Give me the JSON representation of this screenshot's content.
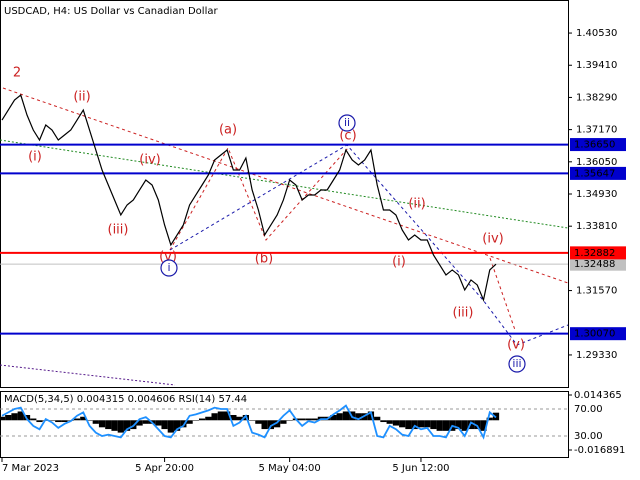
{
  "chart_data": [
    {
      "type": "line",
      "title": "USDCAD, H4:  US Dollar vs Canadian Dollar",
      "categories": [
        "7 Mar 2023",
        null,
        null,
        null,
        null,
        null,
        null,
        null,
        null,
        null,
        null,
        null,
        null,
        null,
        null,
        null,
        null,
        null,
        null,
        null,
        null,
        null,
        null,
        null,
        null,
        null,
        "5 Apr 20:00",
        null,
        null,
        null,
        null,
        null,
        null,
        null,
        null,
        null,
        null,
        null,
        null,
        null,
        null,
        null,
        null,
        null,
        null,
        null,
        "5 May 04:00",
        null,
        null,
        null,
        null,
        null,
        null,
        null,
        null,
        null,
        null,
        null,
        null,
        null,
        null,
        null,
        null,
        null,
        null,
        null,
        null,
        "5 Jun 12:00",
        null,
        null,
        null,
        null,
        null,
        null,
        null,
        null,
        null,
        null,
        null,
        null
      ],
      "series": [
        {
          "color": "#000000",
          "values": [
            1.37504,
            1.37852,
            1.382,
            1.38374,
            1.37678,
            1.37156,
            1.36808,
            1.3733,
            1.37156,
            1.36808,
            1.36982,
            1.37156,
            1.37504,
            1.37852,
            1.37156,
            1.36461,
            1.35765,
            1.35243,
            1.34722,
            1.342,
            1.34548,
            1.34722,
            1.3507,
            1.35417,
            1.35243,
            1.34722,
            1.33852,
            1.33156,
            1.33504,
            1.33852,
            1.34548,
            1.34896,
            1.35243,
            1.35591,
            1.36113,
            1.36287,
            1.36461,
            1.35765,
            1.35765,
            1.36182,
            1.3507,
            1.34374,
            1.33504,
            1.33852,
            1.342,
            1.34722,
            1.35417,
            1.35243,
            1.34722,
            1.34896,
            1.34896,
            1.3507,
            1.3507,
            1.35417,
            1.35765,
            1.36461,
            1.36113,
            1.35939,
            1.36113,
            1.36461,
            1.35243,
            1.34374,
            1.34374,
            1.342,
            1.33678,
            1.3333,
            1.33504,
            1.3333,
            1.3333,
            1.32808,
            1.32461,
            1.32113,
            1.32287,
            1.32113,
            1.31591,
            1.31939,
            1.31765,
            1.31243,
            1.32287,
            1.32488
          ]
        }
      ],
      "ylim": [
        1.2818,
        1.4168
      ],
      "yticks": [
        {
          "value": 1.4053,
          "label": "1.40530"
        },
        {
          "value": 1.3941,
          "label": "1.39410"
        },
        {
          "value": 1.3829,
          "label": "1.38290"
        },
        {
          "value": 1.3717,
          "label": "1.37170"
        },
        {
          "value": 1.3605,
          "label": "1.36050"
        },
        {
          "value": 1.3493,
          "label": "1.34930"
        },
        {
          "value": 1.3381,
          "label": "1.33810"
        },
        {
          "value": 1.3157,
          "label": "1.31570"
        },
        {
          "value": 1.2933,
          "label": "1.29330"
        }
      ],
      "levels": [
        {
          "value": 1.3665,
          "label": "1.36650",
          "color": "#0000cd"
        },
        {
          "value": 1.35647,
          "label": "1.35647",
          "color": "#0000cd"
        },
        {
          "value": 1.32882,
          "label": "1.32882",
          "color": "#ff0000"
        },
        {
          "value": 1.3007,
          "label": "1.30070",
          "color": "#0000cd"
        }
      ],
      "last_price": {
        "value": 1.32488,
        "label": "1.32488",
        "color": "#c0c0c0"
      },
      "annotations": [
        {
          "text": "2",
          "color": "#cc2222"
        },
        {
          "text": "(ii)",
          "color": "#cc2222"
        },
        {
          "text": "(i)",
          "color": "#cc2222"
        },
        {
          "text": "(iv)",
          "color": "#cc2222"
        },
        {
          "text": "(iii)",
          "color": "#cc2222"
        },
        {
          "text": "(v)",
          "color": "#cc2222"
        },
        {
          "text": "i",
          "color": "#1a1aaa",
          "circled": true
        },
        {
          "text": "(a)",
          "color": "#cc2222"
        },
        {
          "text": "(b)",
          "color": "#cc2222"
        },
        {
          "text": "(c)",
          "color": "#cc2222"
        },
        {
          "text": "ii",
          "color": "#1a1aaa",
          "circled": true
        },
        {
          "text": "(ii)",
          "color": "#cc2222"
        },
        {
          "text": "(i)",
          "color": "#cc2222"
        },
        {
          "text": "(iv)",
          "color": "#cc2222"
        },
        {
          "text": "(iii)",
          "color": "#cc2222"
        },
        {
          "text": "(v)",
          "color": "#cc2222"
        },
        {
          "text": "iii",
          "color": "#1a1aaa",
          "circled": true
        }
      ]
    },
    {
      "type": "bar",
      "title": "MACD(5,34,5) 0.004315 0.004606 RSI(14) 57.44",
      "series": [
        {
          "color": "#000000",
          "values": [
            0.002,
            0.003,
            0.004,
            0.005,
            0.003,
            0.001,
            -0.001,
            0,
            0,
            -0.001,
            -0.001,
            0,
            0.001,
            0.002,
            0,
            -0.002,
            -0.004,
            -0.005,
            -0.006,
            -0.007,
            -0.006,
            -0.005,
            -0.003,
            -0.002,
            -0.002,
            -0.003,
            -0.005,
            -0.007,
            -0.006,
            -0.004,
            -0.002,
            0,
            0.001,
            0.002,
            0.004,
            0.005,
            0.005,
            0.003,
            0.002,
            0.003,
            0,
            -0.002,
            -0.005,
            -0.005,
            -0.004,
            -0.002,
            0,
            0.001,
            0.001,
            0.001,
            0.001,
            0.002,
            0.002,
            0.003,
            0.004,
            0.005,
            0.005,
            0.004,
            0.004,
            0.005,
            0.002,
            -0.001,
            -0.002,
            -0.003,
            -0.004,
            -0.005,
            -0.005,
            -0.004,
            -0.004,
            -0.005,
            -0.006,
            -0.006,
            -0.006,
            -0.005,
            -0.006,
            -0.005,
            -0.005,
            -0.006,
            0.0015,
            0.004315
          ]
        },
        {
          "color": "#1e90ff",
          "axis": "y2",
          "values": [
            60,
            65,
            70,
            72,
            55,
            45,
            40,
            55,
            50,
            42,
            48,
            52,
            60,
            65,
            45,
            35,
            30,
            32,
            30,
            28,
            40,
            45,
            55,
            58,
            50,
            40,
            30,
            28,
            40,
            45,
            60,
            62,
            65,
            68,
            72,
            70,
            70,
            45,
            50,
            60,
            35,
            32,
            28,
            45,
            50,
            60,
            68,
            55,
            45,
            52,
            50,
            55,
            55,
            62,
            68,
            75,
            58,
            55,
            60,
            65,
            30,
            28,
            45,
            40,
            32,
            30,
            45,
            40,
            42,
            30,
            30,
            28,
            45,
            42,
            30,
            50,
            45,
            28,
            65,
            57.44
          ]
        }
      ],
      "ylim": [
        -0.016891,
        0.014365
      ],
      "yticks": [
        0.014365,
        -0.016891
      ],
      "y2lim": [
        9.26,
        90.74
      ],
      "y2ticks": [
        {
          "value": 70,
          "label": "70.00"
        },
        {
          "value": 30,
          "label": "30.00"
        }
      ]
    }
  ]
}
